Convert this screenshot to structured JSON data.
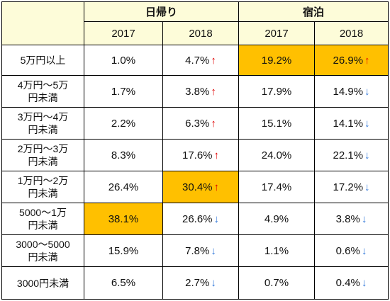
{
  "header": {
    "groups": [
      "日帰り",
      "宿泊"
    ],
    "years": [
      "2017",
      "2018",
      "2017",
      "2018"
    ]
  },
  "arrows": {
    "up": "↑",
    "down": "↓"
  },
  "colors": {
    "highlight": "#ffc000",
    "header_bg": "#fdfcd9",
    "up": "#e00000",
    "down": "#2e75d9"
  },
  "rows": [
    {
      "label": [
        "5万円以上"
      ],
      "day2017": "1.0%",
      "day2018": "4.7%",
      "day2018_dir": "up",
      "stay2017": "19.2%",
      "stay2018": "26.9%",
      "stay2018_dir": "up",
      "highlight": [
        "stay2017",
        "stay2018"
      ]
    },
    {
      "label": [
        "4万円～5万",
        "円未満"
      ],
      "day2017": "1.7%",
      "day2018": "3.8%",
      "day2018_dir": "up",
      "stay2017": "17.9%",
      "stay2018": "14.9%",
      "stay2018_dir": "down",
      "highlight": []
    },
    {
      "label": [
        "3万円～4万",
        "円未満"
      ],
      "day2017": "2.2%",
      "day2018": "6.3%",
      "day2018_dir": "up",
      "stay2017": "15.1%",
      "stay2018": "14.1%",
      "stay2018_dir": "down",
      "highlight": []
    },
    {
      "label": [
        "2万円～3万",
        "円未満"
      ],
      "day2017": "8.3%",
      "day2018": "17.6%",
      "day2018_dir": "up",
      "stay2017": "24.0%",
      "stay2018": "22.1%",
      "stay2018_dir": "down",
      "highlight": []
    },
    {
      "label": [
        "1万円～2万",
        "円未満"
      ],
      "day2017": "26.4%",
      "day2018": "30.4%",
      "day2018_dir": "up",
      "stay2017": "17.4%",
      "stay2018": "17.2%",
      "stay2018_dir": "down",
      "highlight": [
        "day2018"
      ]
    },
    {
      "label": [
        "5000～1万",
        "円未満"
      ],
      "day2017": "38.1%",
      "day2018": "26.6%",
      "day2018_dir": "down",
      "stay2017": "4.9%",
      "stay2018": "3.8%",
      "stay2018_dir": "down",
      "highlight": [
        "day2017"
      ]
    },
    {
      "label": [
        "3000～5000",
        "円未満"
      ],
      "day2017": "15.9%",
      "day2018": "7.8%",
      "day2018_dir": "down",
      "stay2017": "1.1%",
      "stay2018": "0.6%",
      "stay2018_dir": "down",
      "highlight": []
    },
    {
      "label": [
        "3000円未満"
      ],
      "day2017": "6.5%",
      "day2018": "2.7%",
      "day2018_dir": "down",
      "stay2017": "0.7%",
      "stay2018": "0.4%",
      "stay2018_dir": "down",
      "highlight": []
    }
  ]
}
